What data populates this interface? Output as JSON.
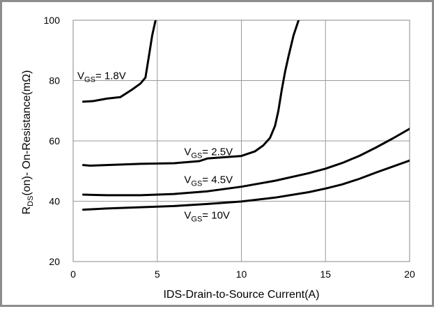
{
  "chart_data": {
    "type": "line",
    "xlabel": "IDS-Drain-to-Source Current(A)",
    "ylabel": {
      "main": "R",
      "sub": "DS",
      "rest": "(on)- On-Resistance(mΩ)"
    },
    "xlim": [
      0,
      20
    ],
    "ylim": [
      20,
      100
    ],
    "xticks": [
      0,
      5,
      10,
      15,
      20
    ],
    "yticks": [
      20,
      40,
      60,
      80,
      100
    ],
    "grid": true,
    "series": [
      {
        "name": "VGS= 1.8V",
        "label": {
          "prefix": "V",
          "sub": "GS",
          "suffix": "= 1.8V"
        },
        "x": [
          0.6,
          1.2,
          2.0,
          2.8,
          3.5,
          4.0,
          4.3,
          4.5,
          4.7,
          4.9
        ],
        "y": [
          73,
          73.2,
          74,
          74.5,
          77,
          79,
          81,
          88,
          95,
          100
        ]
      },
      {
        "name": "VGS= 2.5V",
        "label": {
          "prefix": "V",
          "sub": "GS",
          "suffix": "= 2.5V"
        },
        "x": [
          0.6,
          1.0,
          2.0,
          4.0,
          6.0,
          7.5,
          8.0,
          10.0,
          10.8,
          11.3,
          11.7,
          12.0,
          12.2,
          12.4,
          12.6,
          12.8,
          13.1,
          13.4
        ],
        "y": [
          52,
          51.8,
          52,
          52.4,
          52.6,
          53.3,
          54.2,
          55,
          56.5,
          58.5,
          61,
          65,
          70,
          77,
          83,
          88,
          95,
          100
        ]
      },
      {
        "name": "VGS= 4.5V",
        "label": {
          "prefix": "V",
          "sub": "GS",
          "suffix": "= 4.5V"
        },
        "x": [
          0.6,
          2,
          4,
          6,
          8,
          10,
          12,
          14,
          15,
          16,
          17,
          18,
          19,
          20
        ],
        "y": [
          42.2,
          42,
          42,
          42.4,
          43.3,
          44.8,
          46.8,
          49.3,
          50.8,
          52.7,
          55,
          57.8,
          60.8,
          64
        ]
      },
      {
        "name": "VGS= 10V",
        "label": {
          "prefix": "V",
          "sub": "GS",
          "suffix": "= 10V"
        },
        "x": [
          0.6,
          2,
          4,
          6,
          8,
          10,
          12,
          14,
          15,
          16,
          17,
          18,
          19,
          20
        ],
        "y": [
          37.2,
          37.6,
          38,
          38.4,
          39.1,
          39.9,
          41.2,
          43,
          44.2,
          45.6,
          47.4,
          49.5,
          51.5,
          53.5
        ]
      }
    ]
  }
}
